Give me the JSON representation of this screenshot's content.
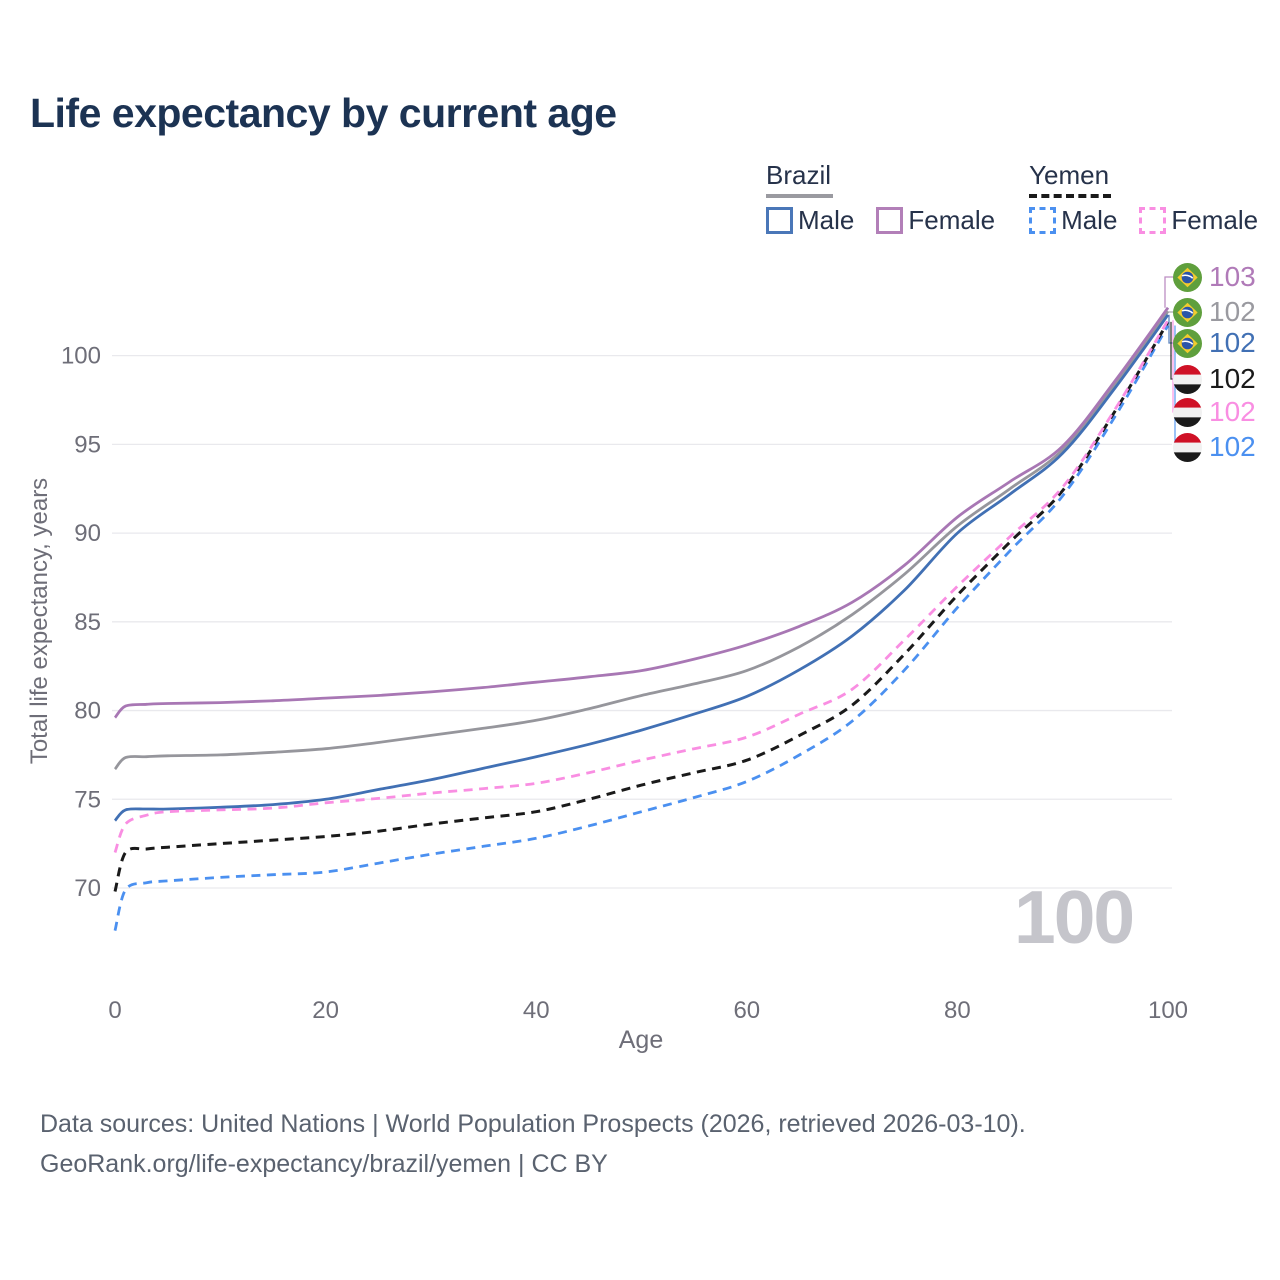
{
  "title": "Life expectancy by current age",
  "legend": {
    "groups": [
      {
        "name": "Brazil",
        "line_style": "solid",
        "line_color": "#9a9aa0",
        "items": [
          {
            "label": "Male",
            "color": "#4a77b8",
            "dashed": false
          },
          {
            "label": "Female",
            "color": "#b27fb8",
            "dashed": false
          }
        ]
      },
      {
        "name": "Yemen",
        "line_style": "dashed",
        "line_color": "#1a1a1a",
        "items": [
          {
            "label": "Male",
            "color": "#4b90f0",
            "dashed": true
          },
          {
            "label": "Female",
            "color": "#f98ee2",
            "dashed": true
          }
        ]
      }
    ]
  },
  "watermark": "100",
  "end_labels": [
    {
      "flag": "brazil",
      "value": "103",
      "color": "#b07ab8",
      "series": "Brazil Female"
    },
    {
      "flag": "brazil",
      "value": "102",
      "color": "#9a9aa0",
      "series": "Brazil"
    },
    {
      "flag": "brazil",
      "value": "102",
      "color": "#4170b4",
      "series": "Brazil Male"
    },
    {
      "flag": "yemen",
      "value": "102",
      "color": "#1a1a1a",
      "series": "Yemen"
    },
    {
      "flag": "yemen",
      "value": "102",
      "color": "#f98ee2",
      "series": "Yemen Female"
    },
    {
      "flag": "yemen",
      "value": "102",
      "color": "#4b90f0",
      "series": "Yemen Male"
    }
  ],
  "footer": {
    "line1": "Data sources: United Nations | World Population Prospects (2026, retrieved 2026-03-10).",
    "line2": "GeoRank.org/life-expectancy/brazil/yemen | CC BY"
  },
  "chart_data": {
    "type": "line",
    "title": "Life expectancy by current age",
    "xlabel": "Age",
    "ylabel": "Total life expectancy, years",
    "x_ticks": [
      0,
      20,
      40,
      60,
      80,
      100
    ],
    "y_ticks": [
      70,
      75,
      80,
      85,
      90,
      95,
      100
    ],
    "xlim": [
      0,
      100
    ],
    "ylim": [
      67,
      103.5
    ],
    "grid": "horizontal",
    "legend_position": "top-right",
    "x": [
      0,
      1,
      3,
      5,
      10,
      15,
      20,
      25,
      30,
      35,
      40,
      45,
      50,
      55,
      60,
      65,
      70,
      75,
      80,
      85,
      90,
      95,
      100
    ],
    "series": [
      {
        "name": "Brazil",
        "country": "Brazil",
        "sex": "Both",
        "color": "#96969c",
        "dash": false,
        "values": [
          76.7,
          77.35,
          77.4,
          77.45,
          77.5,
          77.65,
          77.85,
          78.2,
          78.6,
          79.0,
          79.45,
          80.1,
          80.85,
          81.5,
          82.25,
          83.6,
          85.4,
          87.7,
          90.4,
          92.5,
          94.7,
          98.4,
          102.5
        ]
      },
      {
        "name": "Brazil Male",
        "country": "Brazil",
        "sex": "Male",
        "color": "#4170b4",
        "dash": false,
        "values": [
          73.8,
          74.4,
          74.45,
          74.45,
          74.55,
          74.7,
          75.0,
          75.55,
          76.1,
          76.75,
          77.4,
          78.1,
          78.9,
          79.8,
          80.8,
          82.3,
          84.2,
          86.8,
          90.0,
          92.2,
          94.5,
          98.2,
          102.3
        ]
      },
      {
        "name": "Brazil Female",
        "country": "Brazil",
        "sex": "Female",
        "color": "#a877b4",
        "dash": false,
        "values": [
          79.6,
          80.25,
          80.35,
          80.4,
          80.45,
          80.55,
          80.7,
          80.85,
          81.05,
          81.3,
          81.6,
          81.9,
          82.25,
          82.9,
          83.7,
          84.75,
          86.1,
          88.2,
          90.9,
          92.9,
          94.9,
          98.6,
          102.7
        ]
      },
      {
        "name": "Yemen Male",
        "country": "Yemen",
        "sex": "Male",
        "color": "#4b90f0",
        "dash": true,
        "values": [
          67.6,
          69.9,
          70.3,
          70.4,
          70.6,
          70.75,
          70.9,
          71.4,
          71.9,
          72.35,
          72.8,
          73.5,
          74.3,
          75.1,
          76.0,
          77.5,
          79.4,
          82.3,
          85.8,
          89.0,
          92.1,
          96.6,
          101.7
        ]
      },
      {
        "name": "Yemen",
        "country": "Yemen",
        "sex": "Both",
        "color": "#1a1a1a",
        "dash": true,
        "values": [
          69.8,
          72.0,
          72.2,
          72.3,
          72.5,
          72.7,
          72.9,
          73.2,
          73.6,
          73.95,
          74.3,
          75.0,
          75.8,
          76.5,
          77.2,
          78.6,
          80.3,
          83.2,
          86.5,
          89.5,
          92.4,
          96.9,
          101.9
        ]
      },
      {
        "name": "Yemen Female",
        "country": "Yemen",
        "sex": "Female",
        "color": "#f98ee2",
        "dash": true,
        "values": [
          72.0,
          73.6,
          74.1,
          74.3,
          74.4,
          74.5,
          74.8,
          75.05,
          75.35,
          75.6,
          75.9,
          76.5,
          77.2,
          77.85,
          78.5,
          79.8,
          81.2,
          84.0,
          87.0,
          89.8,
          92.6,
          97.0,
          102.0
        ]
      }
    ],
    "end_values": {
      "Brazil Female": 103,
      "Brazil": 102,
      "Brazil Male": 102,
      "Yemen": 102,
      "Yemen Female": 102,
      "Yemen Male": 102
    }
  }
}
